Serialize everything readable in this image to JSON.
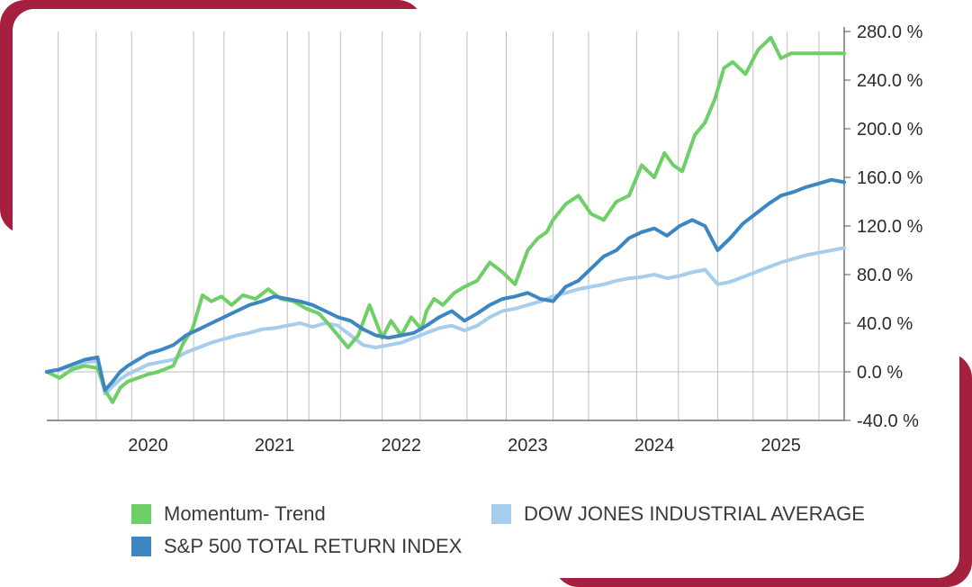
{
  "colors": {
    "frame_accent": "#a5203f",
    "momentum": "#6dcf66",
    "sp500": "#3d86c2",
    "dow": "#a6cdeb",
    "grid": "#bdbdbd",
    "axis": "#555555"
  },
  "chart_data": {
    "type": "line",
    "title": "",
    "xlabel": "",
    "ylabel": "",
    "xlim": [
      2019.2,
      2025.5
    ],
    "ylim": [
      -40,
      280
    ],
    "y_ticks": [
      280,
      240,
      200,
      160,
      120,
      80,
      40,
      0,
      -40
    ],
    "y_tick_labels": [
      "280.0 %",
      "240.0 %",
      "200.0 %",
      "160.0 %",
      "120.0 %",
      "80.0 %",
      "40.0 %",
      "0.0 %",
      "-40.0 %"
    ],
    "x_tick_labels": [
      {
        "label": "2020",
        "x": 2020.0
      },
      {
        "label": "2021",
        "x": 2021.0
      },
      {
        "label": "2022",
        "x": 2022.0
      },
      {
        "label": "2023",
        "x": 2023.0
      },
      {
        "label": "2024",
        "x": 2024.0
      },
      {
        "label": "2025",
        "x": 2025.0
      }
    ],
    "grid": "vertical",
    "legend": "bottom",
    "series": [
      {
        "name": "Momentum- Trend",
        "color": "#6dcf66",
        "x": [
          2019.2,
          2019.3,
          2019.4,
          2019.5,
          2019.6,
          2019.66,
          2019.72,
          2019.78,
          2019.84,
          2019.92,
          2020.0,
          2020.08,
          2020.2,
          2020.28,
          2020.35,
          2020.43,
          2020.5,
          2020.58,
          2020.66,
          2020.75,
          2020.85,
          2020.95,
          2021.05,
          2021.15,
          2021.25,
          2021.35,
          2021.42,
          2021.5,
          2021.58,
          2021.66,
          2021.75,
          2021.85,
          2021.92,
          2022.0,
          2022.08,
          2022.16,
          2022.2,
          2022.26,
          2022.33,
          2022.42,
          2022.5,
          2022.6,
          2022.7,
          2022.8,
          2022.9,
          2023.0,
          2023.08,
          2023.15,
          2023.2,
          2023.3,
          2023.4,
          2023.5,
          2023.6,
          2023.7,
          2023.8,
          2023.9,
          2024.0,
          2024.08,
          2024.15,
          2024.22,
          2024.32,
          2024.4,
          2024.48,
          2024.55,
          2024.62,
          2024.72,
          2024.82,
          2024.92,
          2025.0,
          2025.08,
          2025.15,
          2025.22,
          2025.3,
          2025.38,
          2025.45,
          2025.5
        ],
        "y": [
          0,
          -5,
          2,
          5,
          3,
          -15,
          -25,
          -13,
          -8,
          -5,
          -2,
          0,
          5,
          24,
          35,
          63,
          58,
          62,
          55,
          63,
          60,
          68,
          60,
          58,
          52,
          48,
          40,
          30,
          20,
          30,
          55,
          28,
          42,
          30,
          45,
          35,
          50,
          60,
          55,
          65,
          70,
          75,
          90,
          82,
          72,
          100,
          110,
          115,
          125,
          138,
          145,
          130,
          125,
          140,
          145,
          170,
          160,
          180,
          170,
          165,
          195,
          205,
          225,
          250,
          255,
          245,
          265,
          275,
          258,
          262,
          262,
          262,
          262,
          262,
          262,
          262
        ],
        "note": "reading"
      },
      {
        "name": "S&P 500 TOTAL RETURN INDEX",
        "color": "#3d86c2",
        "x": [
          2019.2,
          2019.3,
          2019.4,
          2019.5,
          2019.6,
          2019.66,
          2019.72,
          2019.78,
          2019.84,
          2019.92,
          2020.0,
          2020.1,
          2020.2,
          2020.3,
          2020.4,
          2020.5,
          2020.6,
          2020.7,
          2020.8,
          2020.9,
          2021.0,
          2021.1,
          2021.2,
          2021.3,
          2021.4,
          2021.5,
          2021.6,
          2021.7,
          2021.8,
          2021.9,
          2022.0,
          2022.1,
          2022.2,
          2022.3,
          2022.4,
          2022.5,
          2022.6,
          2022.7,
          2022.8,
          2022.9,
          2023.0,
          2023.1,
          2023.2,
          2023.3,
          2023.4,
          2023.5,
          2023.6,
          2023.7,
          2023.8,
          2023.9,
          2024.0,
          2024.1,
          2024.2,
          2024.3,
          2024.4,
          2024.5,
          2024.6,
          2024.7,
          2024.8,
          2024.9,
          2025.0,
          2025.1,
          2025.2,
          2025.3,
          2025.4,
          2025.5
        ],
        "y": [
          0,
          2,
          6,
          10,
          12,
          -15,
          -8,
          0,
          5,
          10,
          15,
          18,
          22,
          30,
          35,
          40,
          45,
          50,
          55,
          58,
          62,
          60,
          58,
          55,
          50,
          45,
          42,
          35,
          30,
          28,
          30,
          32,
          38,
          45,
          50,
          42,
          48,
          55,
          60,
          62,
          65,
          60,
          58,
          70,
          75,
          85,
          95,
          100,
          110,
          115,
          118,
          112,
          120,
          125,
          120,
          100,
          110,
          122,
          130,
          138,
          145,
          148,
          152,
          155,
          158,
          156
        ]
      },
      {
        "name": "DOW JONES INDUSTRIAL AVERAGE",
        "color": "#a6cdeb",
        "x": [
          2019.2,
          2019.3,
          2019.4,
          2019.5,
          2019.6,
          2019.66,
          2019.72,
          2019.78,
          2019.84,
          2019.92,
          2020.0,
          2020.1,
          2020.2,
          2020.3,
          2020.4,
          2020.5,
          2020.6,
          2020.7,
          2020.8,
          2020.9,
          2021.0,
          2021.1,
          2021.2,
          2021.3,
          2021.4,
          2021.5,
          2021.6,
          2021.7,
          2021.8,
          2021.9,
          2022.0,
          2022.1,
          2022.2,
          2022.3,
          2022.4,
          2022.5,
          2022.6,
          2022.7,
          2022.8,
          2022.9,
          2023.0,
          2023.1,
          2023.2,
          2023.3,
          2023.4,
          2023.5,
          2023.6,
          2023.7,
          2023.8,
          2023.9,
          2024.0,
          2024.1,
          2024.2,
          2024.3,
          2024.4,
          2024.5,
          2024.6,
          2024.7,
          2024.8,
          2024.9,
          2025.0,
          2025.1,
          2025.2,
          2025.3,
          2025.4,
          2025.5
        ],
        "y": [
          0,
          2,
          5,
          8,
          9,
          -18,
          -12,
          -6,
          -2,
          2,
          6,
          8,
          10,
          16,
          20,
          24,
          27,
          30,
          32,
          35,
          36,
          38,
          40,
          37,
          40,
          38,
          30,
          22,
          20,
          22,
          24,
          28,
          32,
          36,
          38,
          34,
          38,
          45,
          50,
          52,
          55,
          58,
          62,
          65,
          68,
          70,
          72,
          75,
          77,
          78,
          80,
          77,
          79,
          82,
          84,
          72,
          74,
          78,
          82,
          86,
          90,
          93,
          96,
          98,
          100,
          102
        ]
      }
    ]
  },
  "legend_items": [
    {
      "label": "Momentum- Trend",
      "color": "#6dcf66"
    },
    {
      "label": "DOW JONES INDUSTRIAL AVERAGE",
      "color": "#a6cdeb"
    },
    {
      "label": "S&P 500 TOTAL RETURN INDEX",
      "color": "#3d86c2"
    }
  ]
}
